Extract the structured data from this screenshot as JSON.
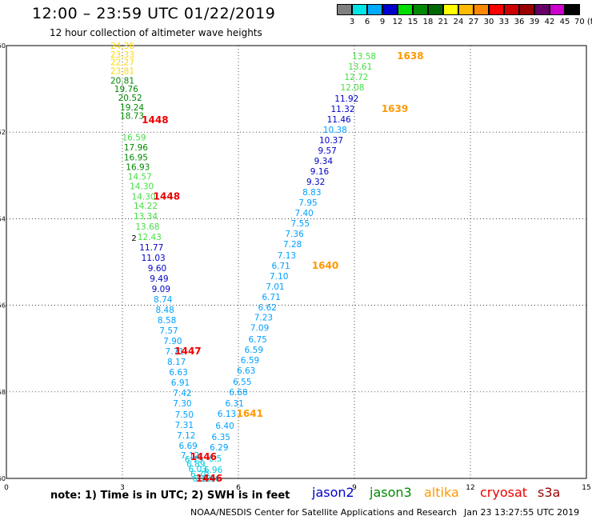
{
  "header": {
    "title": "12:00 – 23:59 UTC 01/22/2019",
    "subtitle": "12 hour collection of altimeter wave heights"
  },
  "colorbar": {
    "labels": [
      "3",
      "6",
      "9",
      "12",
      "15",
      "18",
      "21",
      "24",
      "27",
      "30",
      "33",
      "36",
      "39",
      "42",
      "45",
      "70 (ft)"
    ],
    "colors": [
      "#808080",
      "#00e5e5",
      "#00aaff",
      "#0000cc",
      "#00dd00",
      "#008800",
      "#006600",
      "#ffff00",
      "#ffbb00",
      "#ff8800",
      "#ff0000",
      "#cc0000",
      "#990000",
      "#660066",
      "#cc00cc",
      "#000000"
    ]
  },
  "chart_data": {
    "type": "map",
    "xlim": [
      0,
      15
    ],
    "ylim": [
      -60,
      -50
    ],
    "x_ticks": [
      "0",
      "3",
      "6",
      "9",
      "12",
      "15"
    ],
    "y_ticks": [
      "-50",
      "-52",
      "-54",
      "-56",
      "-58",
      "-60"
    ],
    "grid": true,
    "level_colors": {
      "gray": "#808080",
      "cyan": "#00c8e0",
      "lightblue": "#00a0ff",
      "blue": "#0000cc",
      "lightgreen": "#44dd44",
      "green": "#008800",
      "yellow": "#ffd800",
      "orange": "#ff9900",
      "red": "#ee0000",
      "black": "#000000"
    },
    "tracks": [
      {
        "points": [
          {
            "lon": 3.0,
            "lat": -50.0,
            "v": "24.36",
            "c": "yellow"
          },
          {
            "lon": 3.0,
            "lat": -50.2,
            "v": "23.33",
            "c": "yellow"
          },
          {
            "lon": 3.0,
            "lat": -50.38,
            "v": "22.27",
            "c": "yellow"
          },
          {
            "lon": 3.0,
            "lat": -50.58,
            "v": "23.81",
            "c": "yellow"
          },
          {
            "lon": 3.0,
            "lat": -50.8,
            "v": "20.81",
            "c": "green"
          },
          {
            "lon": 3.1,
            "lat": -51.0,
            "v": "19.76",
            "c": "green"
          },
          {
            "lon": 3.2,
            "lat": -51.2,
            "v": "20.52",
            "c": "green"
          },
          {
            "lon": 3.25,
            "lat": -51.42,
            "v": "19.24",
            "c": "green"
          },
          {
            "lon": 3.25,
            "lat": -51.62,
            "v": "18.73",
            "c": "green"
          },
          {
            "lon": 3.3,
            "lat": -52.12,
            "v": "16.59",
            "c": "lightgreen"
          },
          {
            "lon": 3.35,
            "lat": -52.35,
            "v": "17.96",
            "c": "green"
          },
          {
            "lon": 3.35,
            "lat": -52.58,
            "v": "16.95",
            "c": "green"
          },
          {
            "lon": 3.4,
            "lat": -52.8,
            "v": "16.93",
            "c": "green"
          },
          {
            "lon": 3.45,
            "lat": -53.02,
            "v": "14.57",
            "c": "lightgreen"
          },
          {
            "lon": 3.5,
            "lat": -53.24,
            "v": "14.30",
            "c": "lightgreen"
          },
          {
            "lon": 3.55,
            "lat": -53.48,
            "v": "14.30",
            "c": "lightgreen"
          },
          {
            "lon": 3.6,
            "lat": -53.7,
            "v": "14.22",
            "c": "lightgreen"
          },
          {
            "lon": 3.6,
            "lat": -53.94,
            "v": "13.34",
            "c": "lightgreen"
          },
          {
            "lon": 3.65,
            "lat": -54.18,
            "v": "13.68",
            "c": "lightgreen"
          },
          {
            "lon": 3.7,
            "lat": -54.42,
            "v": "12.43",
            "c": "lightgreen"
          },
          {
            "lon": 3.75,
            "lat": -54.66,
            "v": "11.77",
            "c": "blue"
          },
          {
            "lon": 3.8,
            "lat": -54.9,
            "v": "11.03",
            "c": "blue"
          },
          {
            "lon": 3.9,
            "lat": -55.14,
            "v": "9.60",
            "c": "blue"
          },
          {
            "lon": 3.95,
            "lat": -55.38,
            "v": "9.49",
            "c": "blue"
          },
          {
            "lon": 4.0,
            "lat": -55.62,
            "v": "9.09",
            "c": "blue"
          },
          {
            "lon": 4.05,
            "lat": -55.86,
            "v": "8.74",
            "c": "lightblue"
          },
          {
            "lon": 4.1,
            "lat": -56.1,
            "v": "8.48",
            "c": "lightblue"
          },
          {
            "lon": 4.15,
            "lat": -56.34,
            "v": "8.58",
            "c": "lightblue"
          },
          {
            "lon": 4.2,
            "lat": -56.58,
            "v": "7.57",
            "c": "lightblue"
          },
          {
            "lon": 4.3,
            "lat": -56.82,
            "v": "7.90",
            "c": "lightblue"
          },
          {
            "lon": 4.35,
            "lat": -57.06,
            "v": "7.71",
            "c": "lightblue"
          },
          {
            "lon": 4.4,
            "lat": -57.3,
            "v": "8.17",
            "c": "lightblue"
          },
          {
            "lon": 4.45,
            "lat": -57.54,
            "v": "6.63",
            "c": "lightblue"
          },
          {
            "lon": 4.5,
            "lat": -57.78,
            "v": "6.91",
            "c": "lightblue"
          },
          {
            "lon": 4.55,
            "lat": -58.02,
            "v": "7.42",
            "c": "lightblue"
          },
          {
            "lon": 4.55,
            "lat": -58.26,
            "v": "7.30",
            "c": "lightblue"
          },
          {
            "lon": 4.6,
            "lat": -58.52,
            "v": "7.50",
            "c": "lightblue"
          },
          {
            "lon": 4.6,
            "lat": -58.76,
            "v": "7.31",
            "c": "lightblue"
          },
          {
            "lon": 4.65,
            "lat": -59.0,
            "v": "7.12",
            "c": "lightblue"
          },
          {
            "lon": 4.7,
            "lat": -59.24,
            "v": "6.69",
            "c": "lightblue"
          },
          {
            "lon": 4.75,
            "lat": -59.46,
            "v": "7.12",
            "c": "lightblue"
          },
          {
            "lon": 4.85,
            "lat": -59.56,
            "v": "6.79",
            "c": "cyan"
          },
          {
            "lon": 4.9,
            "lat": -59.66,
            "v": "6.89",
            "c": "cyan"
          },
          {
            "lon": 4.95,
            "lat": -59.78,
            "v": "6.03",
            "c": "cyan"
          },
          {
            "lon": 5.0,
            "lat": -59.9,
            "v": "6.70",
            "c": "cyan"
          },
          {
            "lon": 5.05,
            "lat": -60.0,
            "v": "6.18",
            "c": "cyan"
          }
        ]
      },
      {
        "points": [
          {
            "lon": 5.3,
            "lat": -60.0,
            "v": "6.16",
            "c": "cyan"
          },
          {
            "lon": 5.35,
            "lat": -59.8,
            "v": "6.96",
            "c": "cyan"
          },
          {
            "lon": 5.4,
            "lat": -59.54,
            "v": "6.5",
            "c": "cyan"
          },
          {
            "lon": 5.5,
            "lat": -59.28,
            "v": "6.29",
            "c": "lightblue"
          },
          {
            "lon": 5.55,
            "lat": -59.04,
            "v": "6.35",
            "c": "lightblue"
          },
          {
            "lon": 5.65,
            "lat": -58.78,
            "v": "6.40",
            "c": "lightblue"
          },
          {
            "lon": 5.7,
            "lat": -58.5,
            "v": "6.13",
            "c": "lightblue"
          },
          {
            "lon": 5.9,
            "lat": -58.26,
            "v": "6.31",
            "c": "lightblue"
          },
          {
            "lon": 6.0,
            "lat": -58.0,
            "v": "6.68",
            "c": "lightblue"
          },
          {
            "lon": 6.1,
            "lat": -57.76,
            "v": "6.55",
            "c": "lightblue"
          },
          {
            "lon": 6.2,
            "lat": -57.5,
            "v": "6.63",
            "c": "lightblue"
          },
          {
            "lon": 6.3,
            "lat": -57.26,
            "v": "6.59",
            "c": "lightblue"
          },
          {
            "lon": 6.4,
            "lat": -57.02,
            "v": "6.59",
            "c": "lightblue"
          },
          {
            "lon": 6.5,
            "lat": -56.78,
            "v": "6.75",
            "c": "lightblue"
          },
          {
            "lon": 6.55,
            "lat": -56.52,
            "v": "7.09",
            "c": "lightblue"
          },
          {
            "lon": 6.65,
            "lat": -56.28,
            "v": "7.23",
            "c": "lightblue"
          },
          {
            "lon": 6.75,
            "lat": -56.04,
            "v": "6.62",
            "c": "lightblue"
          },
          {
            "lon": 6.85,
            "lat": -55.8,
            "v": "6.71",
            "c": "lightblue"
          },
          {
            "lon": 6.95,
            "lat": -55.56,
            "v": "7.01",
            "c": "lightblue"
          },
          {
            "lon": 7.05,
            "lat": -55.32,
            "v": "7.10",
            "c": "lightblue"
          },
          {
            "lon": 7.1,
            "lat": -55.08,
            "v": "6.71",
            "c": "lightblue"
          },
          {
            "lon": 7.25,
            "lat": -54.84,
            "v": "7.13",
            "c": "lightblue"
          },
          {
            "lon": 7.4,
            "lat": -54.58,
            "v": "7.28",
            "c": "lightblue"
          },
          {
            "lon": 7.45,
            "lat": -54.34,
            "v": "7.36",
            "c": "lightblue"
          },
          {
            "lon": 7.6,
            "lat": -54.1,
            "v": "7.55",
            "c": "lightblue"
          },
          {
            "lon": 7.7,
            "lat": -53.86,
            "v": "7.40",
            "c": "lightblue"
          },
          {
            "lon": 7.8,
            "lat": -53.62,
            "v": "7.95",
            "c": "lightblue"
          },
          {
            "lon": 7.9,
            "lat": -53.38,
            "v": "8.83",
            "c": "lightblue"
          },
          {
            "lon": 8.0,
            "lat": -53.14,
            "v": "9.32",
            "c": "blue"
          },
          {
            "lon": 8.1,
            "lat": -52.9,
            "v": "9.16",
            "c": "blue"
          },
          {
            "lon": 8.2,
            "lat": -52.66,
            "v": "9.34",
            "c": "blue"
          },
          {
            "lon": 8.3,
            "lat": -52.42,
            "v": "9.57",
            "c": "blue"
          },
          {
            "lon": 8.4,
            "lat": -52.18,
            "v": "10.37",
            "c": "blue"
          },
          {
            "lon": 8.5,
            "lat": -51.94,
            "v": "10.38",
            "c": "lightblue"
          },
          {
            "lon": 8.6,
            "lat": -51.7,
            "v": "11.46",
            "c": "blue"
          },
          {
            "lon": 8.7,
            "lat": -51.46,
            "v": "11.32",
            "c": "blue"
          },
          {
            "lon": 8.8,
            "lat": -51.22,
            "v": "11.92",
            "c": "blue"
          },
          {
            "lon": 8.95,
            "lat": -50.96,
            "v": "12.08",
            "c": "lightgreen"
          },
          {
            "lon": 9.05,
            "lat": -50.72,
            "v": "12.72",
            "c": "lightgreen"
          },
          {
            "lon": 9.15,
            "lat": -50.48,
            "v": "13.61",
            "c": "lightgreen"
          },
          {
            "lon": 9.25,
            "lat": -50.24,
            "v": "13.58",
            "c": "lightgreen"
          }
        ]
      }
    ],
    "pass_times": [
      {
        "lon": 3.5,
        "lat": -51.72,
        "v": "1448",
        "c": "red"
      },
      {
        "lon": 3.8,
        "lat": -53.48,
        "v": "1448",
        "c": "red"
      },
      {
        "lon": 4.35,
        "lat": -57.06,
        "v": "1447",
        "c": "red"
      },
      {
        "lon": 4.75,
        "lat": -59.5,
        "v": "1446",
        "c": "red"
      },
      {
        "lon": 4.9,
        "lat": -60.0,
        "v": "1446",
        "c": "red"
      },
      {
        "lon": 10.1,
        "lat": -50.24,
        "v": "1638",
        "c": "orange"
      },
      {
        "lon": 9.7,
        "lat": -51.46,
        "v": "1639",
        "c": "orange"
      },
      {
        "lon": 7.9,
        "lat": -55.08,
        "v": "1640",
        "c": "orange"
      },
      {
        "lon": 5.95,
        "lat": -58.5,
        "v": "1641",
        "c": "orange"
      }
    ],
    "extra_marks": [
      {
        "lon": 3.3,
        "lat": -54.44,
        "v": "2",
        "c": "black"
      }
    ]
  },
  "footer": {
    "note": "note: 1) Time is in UTC; 2) SWH is in feet",
    "satellites": [
      {
        "name": "jason2",
        "color": "#0000cc"
      },
      {
        "name": "jason3",
        "color": "#008800"
      },
      {
        "name": "altika",
        "color": "#ff9900"
      },
      {
        "name": "cryosat",
        "color": "#ee0000"
      },
      {
        "name": "s3a",
        "color": "#990000"
      }
    ],
    "credit": "NOAA/NESDIS Center for Satellite Applications and Research",
    "timestamp": "Jan 23 13:27:55 UTC 2019"
  }
}
